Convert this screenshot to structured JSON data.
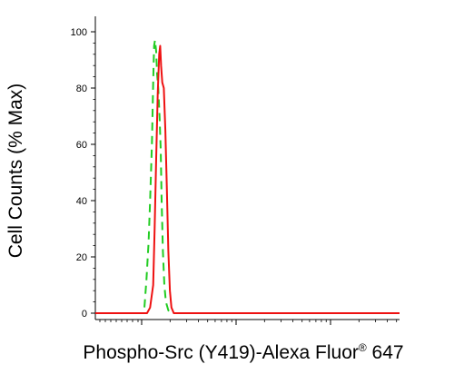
{
  "chart_data": {
    "type": "line",
    "xlabel": "Phospho-Src (Y419)-Alexa Fluor",
    "xlabel_mark": "®",
    "xlabel_suffix": " 647",
    "ylabel": "Cell Counts (% Max)",
    "y_ticks": [
      0,
      20,
      40,
      60,
      80,
      100
    ],
    "ylim": [
      0,
      100
    ],
    "x_scale": "biexponential",
    "x_tick_labels": [],
    "grid": false,
    "legend": "none",
    "series": [
      {
        "style": "dashed",
        "color": "#22cc22",
        "x": [
          0.16,
          0.168,
          0.175,
          0.18,
          0.186,
          0.19,
          0.193,
          0.196,
          0.2,
          0.203,
          0.207,
          0.211,
          0.215,
          0.218,
          0.222,
          0.227,
          0.232,
          0.24,
          0.25
        ],
        "y": [
          0,
          12,
          25,
          40,
          60,
          82,
          95,
          97,
          93,
          85,
          80,
          70,
          58,
          40,
          22,
          10,
          4,
          1,
          0
        ]
      },
      {
        "style": "solid",
        "color": "#ee1111",
        "x": [
          0.17,
          0.18,
          0.19,
          0.195,
          0.2,
          0.205,
          0.21,
          0.213,
          0.216,
          0.22,
          0.225,
          0.23,
          0.235,
          0.24,
          0.245,
          0.25,
          0.258
        ],
        "y": [
          0,
          2,
          10,
          30,
          55,
          78,
          92,
          95,
          88,
          82,
          80,
          65,
          45,
          22,
          8,
          2,
          0
        ]
      }
    ]
  }
}
